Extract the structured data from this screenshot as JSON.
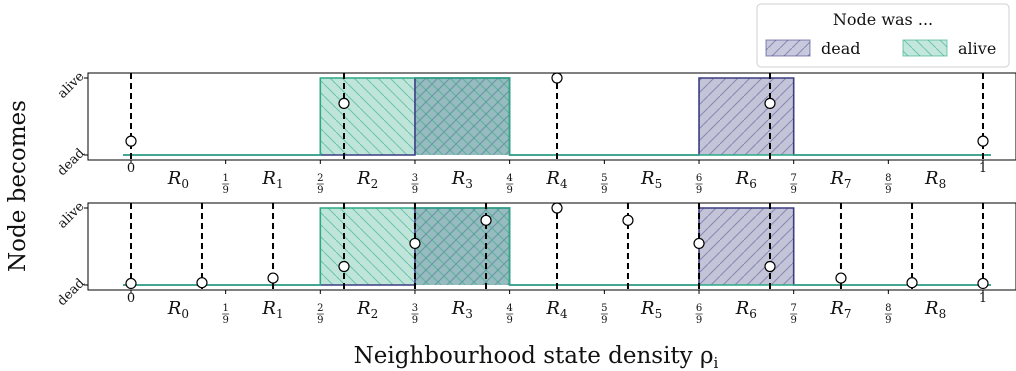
{
  "chart_data": {
    "type": "step",
    "ylabel": "Node becomes",
    "xlabel": "Neighbourhood state density ρ",
    "xlabel_sub": "i",
    "y_ticks": [
      "dead",
      "alive"
    ],
    "x_ticks": [
      "0",
      "1/9",
      "2/9",
      "3/9",
      "4/9",
      "5/9",
      "6/9",
      "7/9",
      "8/9",
      "1"
    ],
    "x_tick_values": [
      0,
      0.1111,
      0.2222,
      0.3333,
      0.4444,
      0.5556,
      0.6667,
      0.7778,
      0.8889,
      1
    ],
    "region_labels": [
      "R0",
      "R1",
      "R2",
      "R3",
      "R4",
      "R5",
      "R6",
      "R7",
      "R8"
    ],
    "region_centers": [
      0.0556,
      0.1667,
      0.2778,
      0.3889,
      0.5,
      0.6111,
      0.7222,
      0.8333,
      0.9444
    ],
    "legend": {
      "title": "Node was ...",
      "entries": [
        {
          "label": "dead",
          "color": "#3b3d82",
          "hatch": "/"
        },
        {
          "label": "alive",
          "color": "#2aa985",
          "hatch": "\\"
        }
      ]
    },
    "colors": {
      "dead": "#3b3d82",
      "alive": "#2aa985"
    },
    "series": [
      {
        "name": "dead",
        "intervals": [
          [
            0.3333,
            0.4444
          ],
          [
            0.6667,
            0.7778
          ]
        ]
      },
      {
        "name": "alive",
        "intervals": [
          [
            0.2222,
            0.4444
          ]
        ]
      }
    ],
    "panels": [
      {
        "dashed_x": [
          0,
          0.25,
          0.5,
          0.75,
          1
        ],
        "points": [
          [
            0,
            0.18
          ],
          [
            0.25,
            0.67
          ],
          [
            0.5,
            1.0
          ],
          [
            0.75,
            0.67
          ],
          [
            1,
            0.18
          ]
        ]
      },
      {
        "dashed_x": [
          0,
          0.0833,
          0.1667,
          0.25,
          0.3333,
          0.4167,
          0.5,
          0.5833,
          0.6667,
          0.75,
          0.8333,
          0.9167,
          1
        ],
        "points": [
          [
            0,
            0.02
          ],
          [
            0.0833,
            0.03
          ],
          [
            0.1667,
            0.09
          ],
          [
            0.25,
            0.24
          ],
          [
            0.3333,
            0.54
          ],
          [
            0.4167,
            0.84
          ],
          [
            0.5,
            1.0
          ],
          [
            0.5833,
            0.84
          ],
          [
            0.6667,
            0.54
          ],
          [
            0.75,
            0.24
          ],
          [
            0.8333,
            0.09
          ],
          [
            0.9167,
            0.03
          ],
          [
            1,
            0.02
          ]
        ]
      }
    ]
  }
}
